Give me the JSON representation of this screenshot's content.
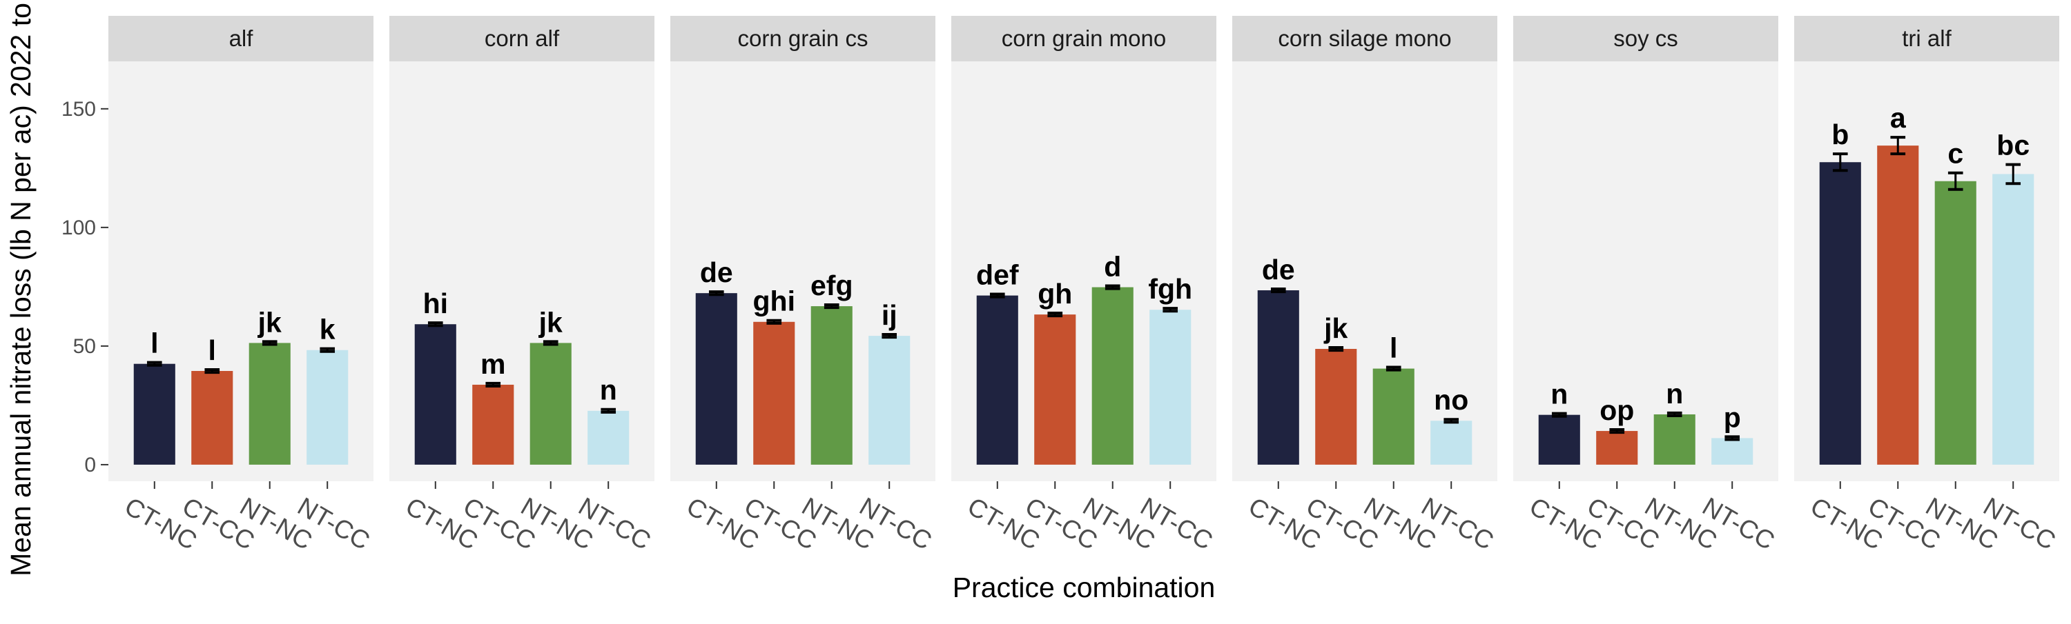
{
  "chart_data": {
    "type": "bar",
    "xlabel": "Practice combination",
    "ylabel": "Mean annual nitrate loss (lb N per ac) 2022 to",
    "ylim": [
      -7,
      170
    ],
    "yticks": [
      0,
      50,
      100,
      150
    ],
    "grid": false,
    "legend": "none",
    "categories": [
      "CT-NC",
      "CT-CC",
      "NT-NC",
      "NT-CC"
    ],
    "colors": [
      "#1f2340",
      "#c6512e",
      "#619a46",
      "#c2e4ee"
    ],
    "error_bar_color": "#000000",
    "panels": [
      {
        "name": "alf",
        "values": [
          42.5,
          39.5,
          51.3,
          48.3
        ],
        "errors": [
          0.6,
          0.6,
          0.6,
          0.6
        ],
        "labels": [
          "l",
          "l",
          "jk",
          "k"
        ]
      },
      {
        "name": "corn alf",
        "values": [
          59.2,
          33.7,
          51.3,
          22.7
        ],
        "errors": [
          0.6,
          0.6,
          0.6,
          0.6
        ],
        "labels": [
          "hi",
          "m",
          "jk",
          "n"
        ]
      },
      {
        "name": "corn grain cs",
        "values": [
          72.3,
          60.2,
          66.8,
          54.3
        ],
        "errors": [
          0.6,
          0.6,
          0.6,
          0.6
        ],
        "labels": [
          "de",
          "ghi",
          "efg",
          "ij"
        ]
      },
      {
        "name": "corn grain mono",
        "values": [
          71.3,
          63.3,
          74.8,
          65.3
        ],
        "errors": [
          0.6,
          0.6,
          0.6,
          0.6
        ],
        "labels": [
          "def",
          "gh",
          "d",
          "fgh"
        ]
      },
      {
        "name": "corn silage mono",
        "values": [
          73.5,
          48.8,
          40.5,
          18.5
        ],
        "errors": [
          0.6,
          0.6,
          0.6,
          0.6
        ],
        "labels": [
          "de",
          "jk",
          "l",
          "no"
        ]
      },
      {
        "name": "soy cs",
        "values": [
          21.0,
          14.2,
          21.2,
          11.2
        ],
        "errors": [
          0.6,
          0.6,
          0.6,
          0.6
        ],
        "labels": [
          "n",
          "op",
          "n",
          "p"
        ]
      },
      {
        "name": "tri alf",
        "values": [
          127.5,
          134.5,
          119.5,
          122.5
        ],
        "errors": [
          3.5,
          3.5,
          3.5,
          4.0
        ],
        "labels": [
          "b",
          "a",
          "c",
          "bc"
        ]
      }
    ],
    "panel_background": "#f2f2f2",
    "strip_background": "#d9d9d9"
  }
}
